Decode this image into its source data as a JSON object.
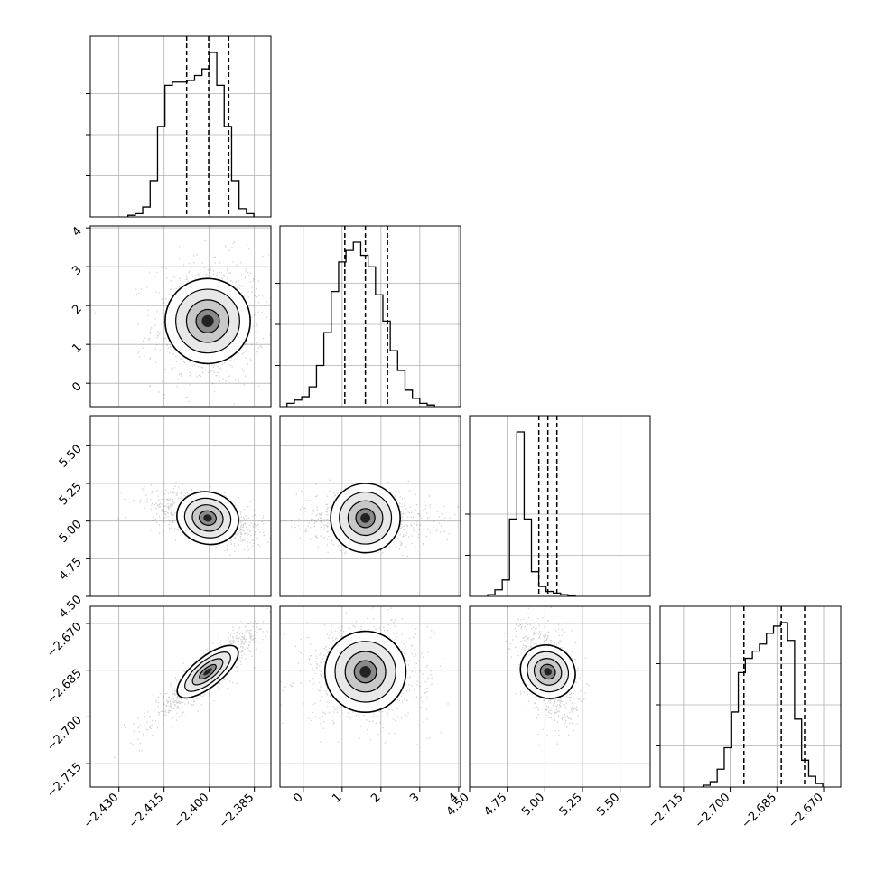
{
  "chart_data": {
    "type": "corner",
    "grid": true,
    "parameters": [
      {
        "range": [
          -2.4395,
          -2.3795
        ],
        "ticks": [
          -2.43,
          -2.415,
          -2.4,
          -2.385
        ],
        "tick_labels": [
          "−2.430",
          "−2.415",
          "−2.400",
          "−2.385"
        ],
        "hist": {
          "edges_start": -2.427,
          "bin_width": 0.00246,
          "counts": [
            0.01,
            0.02,
            0.06,
            0.22,
            0.55,
            0.8,
            0.82,
            0.82,
            0.83,
            0.86,
            0.9,
            1.0,
            0.8,
            0.55,
            0.22,
            0.05,
            0.02
          ]
        },
        "quantiles": [
          -2.4075,
          -2.4002,
          -2.3935
        ]
      },
      {
        "range": [
          -0.6,
          4.05
        ],
        "ticks": [
          0,
          1,
          2,
          3,
          4
        ],
        "tick_labels": [
          "0",
          "1",
          "2",
          "3",
          "4"
        ],
        "hist": {
          "edges_start": -0.42,
          "bin_width": 0.19,
          "counts": [
            0.02,
            0.04,
            0.06,
            0.12,
            0.25,
            0.45,
            0.7,
            0.88,
            0.95,
            1.0,
            0.92,
            0.85,
            0.68,
            0.52,
            0.34,
            0.22,
            0.1,
            0.05,
            0.02,
            0.01
          ]
        },
        "quantiles": [
          1.07,
          1.6,
          2.17
        ]
      },
      {
        "range": [
          4.5,
          5.7
        ],
        "ticks": [
          4.5,
          4.75,
          5.0,
          5.25,
          5.5
        ],
        "tick_labels": [
          "4.50",
          "4.75",
          "5.00",
          "5.25",
          "5.50"
        ],
        "hist": {
          "edges_start": 4.62,
          "bin_width": 0.0485,
          "counts": [
            0.01,
            0.04,
            0.1,
            0.47,
            1.0,
            0.47,
            0.15,
            0.06,
            0.03,
            0.02,
            0.01,
            0.005
          ]
        },
        "quantiles": [
          4.96,
          5.02,
          5.08
        ]
      },
      {
        "range": [
          -2.7225,
          -2.6645
        ],
        "ticks": [
          -2.715,
          -2.7,
          -2.685,
          -2.67
        ],
        "tick_labels": [
          "−2.715",
          "−2.700",
          "−2.685",
          "−2.670"
        ],
        "hist": {
          "edges_start": -2.7087,
          "bin_width": 0.00226,
          "counts": [
            0.01,
            0.03,
            0.1,
            0.22,
            0.42,
            0.64,
            0.72,
            0.76,
            0.8,
            0.86,
            0.9,
            0.92,
            0.82,
            0.38,
            0.15,
            0.06,
            0.02
          ]
        },
        "quantiles": [
          -2.6956,
          -2.6836,
          -2.6761
        ]
      }
    ],
    "correlations": {
      "0-1": 0.05,
      "0-2": -0.55,
      "0-3": 0.92,
      "1-2": -0.1,
      "1-3": 0.03,
      "2-3": -0.4
    },
    "sigma": [
      0.0062,
      0.55,
      0.06,
      0.0053
    ],
    "means": [
      -2.4005,
      1.6,
      5.02,
      -2.6855
    ]
  },
  "chart_data_note": "",
  "legend": ""
}
